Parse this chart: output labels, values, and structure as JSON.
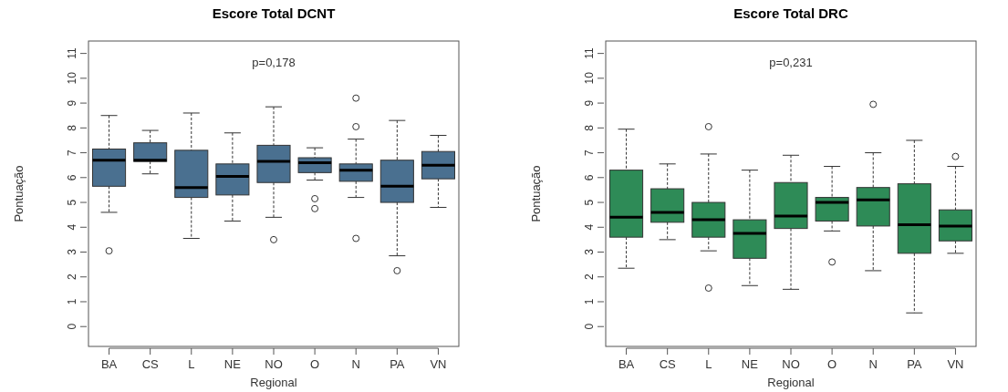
{
  "chart_data": [
    {
      "type": "box",
      "title": "Escore Total DCNT",
      "xlabel": "Regional",
      "ylabel": "Pontuação",
      "annotations": [
        "p=0,178"
      ],
      "categories": [
        "BA",
        "CS",
        "L",
        "NE",
        "NO",
        "O",
        "N",
        "PA",
        "VN"
      ],
      "ylim": [
        -0.8,
        11.5
      ],
      "yticks": [
        0,
        1,
        2,
        3,
        4,
        5,
        6,
        7,
        8,
        9,
        10,
        11
      ],
      "series": [
        {
          "color": "#4a7090",
          "boxes": [
            {
              "low": 4.6,
              "q1": 5.65,
              "median": 6.7,
              "q3": 7.15,
              "high": 8.5,
              "outliers": [
                3.05
              ]
            },
            {
              "low": 6.15,
              "q1": 6.65,
              "median": 6.7,
              "q3": 7.4,
              "high": 7.9
            },
            {
              "low": 3.55,
              "q1": 5.2,
              "median": 5.6,
              "q3": 7.1,
              "high": 8.6
            },
            {
              "low": 4.25,
              "q1": 5.3,
              "median": 6.05,
              "q3": 6.55,
              "high": 7.8
            },
            {
              "low": 4.4,
              "q1": 5.8,
              "median": 6.65,
              "q3": 7.3,
              "high": 8.85,
              "outliers": [
                3.5
              ]
            },
            {
              "low": 5.9,
              "q1": 6.2,
              "median": 6.6,
              "q3": 6.8,
              "high": 7.2,
              "outliers": [
                5.15,
                4.75
              ]
            },
            {
              "low": 5.2,
              "q1": 5.85,
              "median": 6.3,
              "q3": 6.55,
              "high": 7.55,
              "outliers": [
                9.2,
                8.05,
                3.55
              ]
            },
            {
              "low": 2.85,
              "q1": 5.0,
              "median": 5.65,
              "q3": 6.7,
              "high": 8.3,
              "outliers": [
                2.25
              ]
            },
            {
              "low": 4.8,
              "q1": 5.95,
              "median": 6.5,
              "q3": 7.05,
              "high": 7.7
            }
          ]
        }
      ]
    },
    {
      "type": "box",
      "title": "Escore Total DRC",
      "xlabel": "Regional",
      "ylabel": "Pontuação",
      "annotations": [
        "p=0,231"
      ],
      "categories": [
        "BA",
        "CS",
        "L",
        "NE",
        "NO",
        "O",
        "N",
        "PA",
        "VN"
      ],
      "ylim": [
        -0.8,
        11.5
      ],
      "yticks": [
        0,
        1,
        2,
        3,
        4,
        5,
        6,
        7,
        8,
        9,
        10,
        11
      ],
      "series": [
        {
          "color": "#2e8b57",
          "boxes": [
            {
              "low": 2.35,
              "q1": 3.6,
              "median": 4.4,
              "q3": 6.3,
              "high": 7.95
            },
            {
              "low": 3.5,
              "q1": 4.2,
              "median": 4.6,
              "q3": 5.55,
              "high": 6.55
            },
            {
              "low": 3.05,
              "q1": 3.6,
              "median": 4.3,
              "q3": 5.0,
              "high": 6.95,
              "outliers": [
                8.05,
                1.55
              ]
            },
            {
              "low": 1.65,
              "q1": 2.75,
              "median": 3.75,
              "q3": 4.3,
              "high": 6.3
            },
            {
              "low": 1.5,
              "q1": 3.95,
              "median": 4.45,
              "q3": 5.8,
              "high": 6.9
            },
            {
              "low": 3.85,
              "q1": 4.25,
              "median": 5.0,
              "q3": 5.2,
              "high": 6.45,
              "outliers": [
                2.6
              ]
            },
            {
              "low": 2.25,
              "q1": 4.05,
              "median": 5.1,
              "q3": 5.6,
              "high": 7.0,
              "outliers": [
                8.95
              ]
            },
            {
              "low": 0.55,
              "q1": 2.95,
              "median": 4.1,
              "q3": 5.75,
              "high": 7.5
            },
            {
              "low": 2.95,
              "q1": 3.45,
              "median": 4.05,
              "q3": 4.7,
              "high": 6.45,
              "outliers": [
                6.85
              ]
            }
          ]
        }
      ]
    }
  ]
}
